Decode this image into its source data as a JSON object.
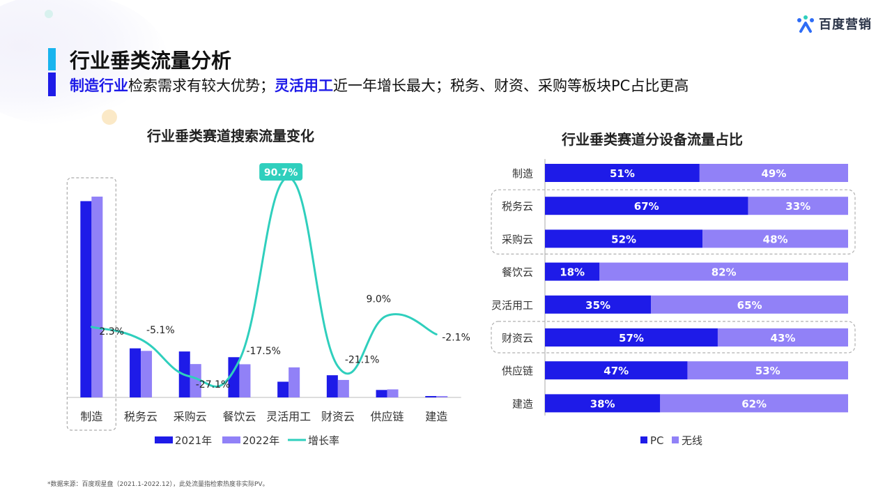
{
  "brand": {
    "logo_text": "百度营销",
    "accent_blue": "#1e1be8",
    "accent_light": "#9181f7",
    "accent_teal": "#2fcfbd",
    "title_bar_cyan": "#19b4ee"
  },
  "header": {
    "title": "行业垂类流量分析",
    "subtitle_parts": [
      {
        "text": "制造行业",
        "highlight": true
      },
      {
        "text": "检索需求有较大优势；",
        "highlight": false
      },
      {
        "text": "灵活用工",
        "highlight": true
      },
      {
        "text": "近一年增长最大；税务、财资、采购等板块PC占比更高",
        "highlight": false
      }
    ]
  },
  "chart_data": [
    {
      "type": "bar",
      "title": "行业垂类赛道搜索流量变化",
      "categories": [
        "制造",
        "税务云",
        "采购云",
        "餐饮云",
        "灵活用工",
        "财资云",
        "供应链",
        "建造"
      ],
      "series": [
        {
          "name": "2021年",
          "color": "#1e1be8",
          "values": [
            100,
            25,
            23.4,
            20.5,
            8,
            11.3,
            3.8,
            0.7
          ]
        },
        {
          "name": "2022年",
          "color": "#9181f7",
          "values": [
            102.3,
            23.7,
            17,
            16.9,
            15.3,
            8.9,
            4.1,
            0.69
          ]
        },
        {
          "name": "增长率",
          "color": "#2fcfbd",
          "kind": "line",
          "values": [
            2.3,
            -5.1,
            -27.1,
            -17.5,
            90.7,
            -21.1,
            9.0,
            -2.1
          ],
          "labels": [
            "2.3%",
            "-5.1%",
            "-27.1%",
            "-17.5%",
            "90.7%",
            "-21.1%",
            "9.0%",
            "-2.1%"
          ]
        }
      ],
      "highlight_category": "制造",
      "legend": {
        "placement": "bottom",
        "items": [
          "2021年",
          "2022年",
          "增长率"
        ]
      }
    },
    {
      "type": "bar",
      "stacked": true,
      "orientation": "horizontal",
      "title": "行业垂类赛道分设备流量占比",
      "categories": [
        "制造",
        "税务云",
        "采购云",
        "餐饮云",
        "灵活用工",
        "财资云",
        "供应链",
        "建造"
      ],
      "series": [
        {
          "name": "PC",
          "color": "#1e1be8",
          "values": [
            51,
            67,
            52,
            18,
            35,
            57,
            47,
            38
          ],
          "labels": [
            "51%",
            "67%",
            "52%",
            "18%",
            "35%",
            "57%",
            "47%",
            "38%"
          ]
        },
        {
          "name": "无线",
          "color": "#9181f7",
          "values": [
            49,
            33,
            48,
            82,
            65,
            43,
            53,
            62
          ],
          "labels": [
            "49%",
            "33%",
            "48%",
            "82%",
            "65%",
            "43%",
            "53%",
            "62%"
          ]
        }
      ],
      "xlim": [
        0,
        100
      ],
      "highlight_groups": [
        [
          "税务云",
          "采购云"
        ],
        [
          "财资云"
        ]
      ],
      "legend": {
        "placement": "bottom",
        "items": [
          "PC",
          "无线"
        ]
      }
    }
  ],
  "footnote": "*数据来源：百度观星盘（2021.1-2022.12），此处流量指检索热度非实际PV。"
}
